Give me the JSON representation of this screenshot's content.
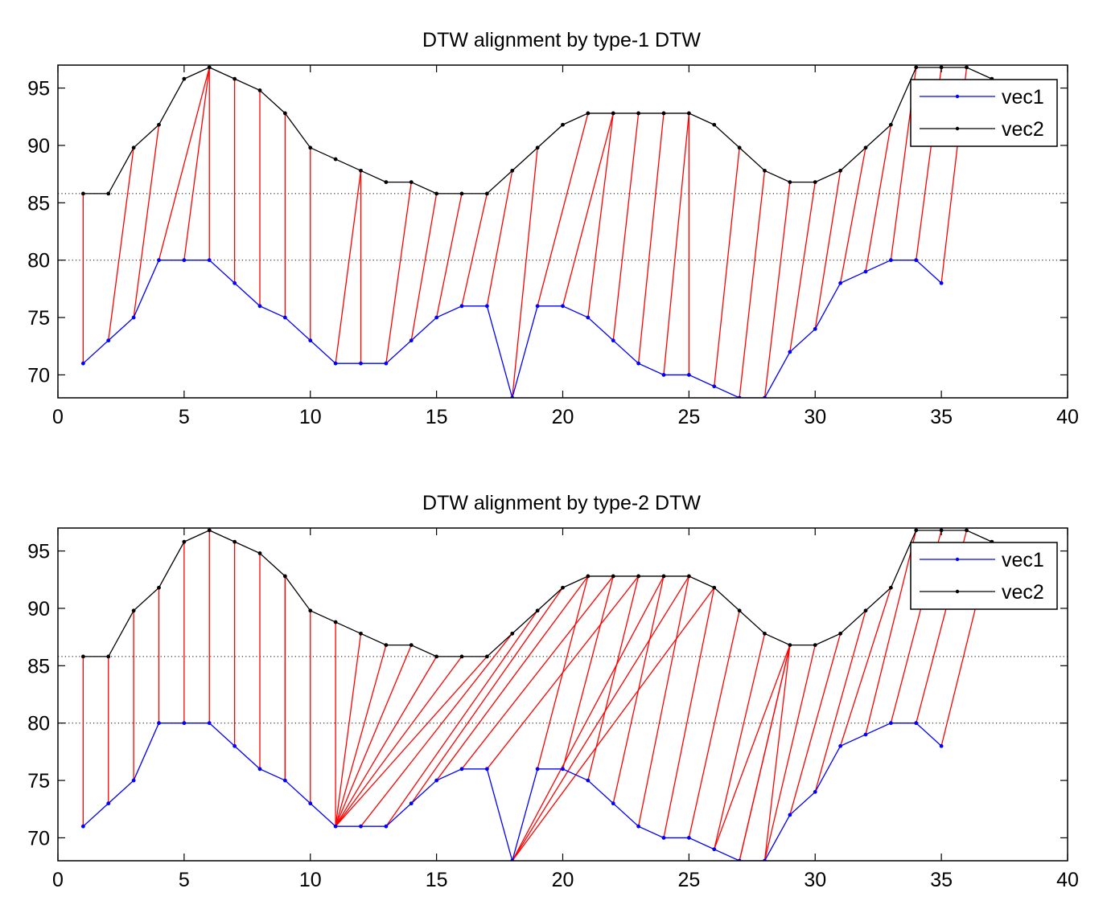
{
  "chart_data": [
    {
      "type": "line",
      "title": "DTW alignment by type-1 DTW",
      "xlabel": "",
      "ylabel": "",
      "xlim": [
        0,
        40
      ],
      "ylim": [
        68,
        97
      ],
      "xticks": [
        0,
        5,
        10,
        15,
        20,
        25,
        30,
        35,
        40
      ],
      "yticks": [
        70,
        75,
        80,
        85,
        90,
        95
      ],
      "reference_lines": [
        80,
        85.8
      ],
      "legend": {
        "position": "top-right",
        "entries": [
          "vec1",
          "vec2"
        ]
      },
      "series": [
        {
          "name": "vec1",
          "color": "#0000ff",
          "x": [
            1,
            2,
            3,
            4,
            5,
            6,
            7,
            8,
            9,
            10,
            11,
            12,
            13,
            14,
            15,
            16,
            17,
            18,
            19,
            20,
            21,
            22,
            23,
            24,
            25,
            26,
            27,
            28,
            29,
            30,
            31,
            32,
            33,
            34,
            35
          ],
          "values": [
            71,
            73,
            75,
            80,
            80,
            80,
            78,
            76,
            75,
            73,
            71,
            71,
            71,
            73,
            75,
            76,
            76,
            68,
            76,
            76,
            75,
            73,
            71,
            70,
            70,
            69,
            68,
            68,
            72,
            74,
            78,
            79,
            80,
            80,
            78
          ]
        },
        {
          "name": "vec2",
          "color": "#000000",
          "x": [
            1,
            2,
            3,
            4,
            5,
            6,
            7,
            8,
            9,
            10,
            11,
            12,
            13,
            14,
            15,
            16,
            17,
            18,
            19,
            20,
            21,
            22,
            23,
            24,
            25,
            26,
            27,
            28,
            29,
            30,
            31,
            32,
            33,
            34,
            35,
            36,
            37
          ],
          "values": [
            85.8,
            85.8,
            89.8,
            91.8,
            95.8,
            96.8,
            95.8,
            94.8,
            92.8,
            89.8,
            88.8,
            87.8,
            86.8,
            86.8,
            85.8,
            85.8,
            85.8,
            87.8,
            89.8,
            91.8,
            92.8,
            92.8,
            92.8,
            92.8,
            92.8,
            91.8,
            89.8,
            87.8,
            86.8,
            86.8,
            87.8,
            89.8,
            91.8,
            96.8,
            96.8,
            96.8,
            95.8
          ]
        }
      ],
      "alignment_color": "#ff0000",
      "alignment_pairs": [
        [
          1,
          1
        ],
        [
          2,
          3
        ],
        [
          3,
          4
        ],
        [
          4,
          6
        ],
        [
          5,
          6
        ],
        [
          6,
          6
        ],
        [
          7,
          7
        ],
        [
          8,
          8
        ],
        [
          9,
          9
        ],
        [
          10,
          10
        ],
        [
          11,
          12
        ],
        [
          12,
          12
        ],
        [
          13,
          14
        ],
        [
          14,
          15
        ],
        [
          15,
          16
        ],
        [
          16,
          17
        ],
        [
          17,
          18
        ],
        [
          18,
          19
        ],
        [
          19,
          21
        ],
        [
          20,
          22
        ],
        [
          21,
          22
        ],
        [
          22,
          23
        ],
        [
          23,
          24
        ],
        [
          24,
          25
        ],
        [
          25,
          25
        ],
        [
          26,
          27
        ],
        [
          27,
          28
        ],
        [
          28,
          29
        ],
        [
          29,
          30
        ],
        [
          30,
          31
        ],
        [
          31,
          32
        ],
        [
          32,
          33
        ],
        [
          33,
          34
        ],
        [
          34,
          35
        ],
        [
          35,
          36
        ]
      ]
    },
    {
      "type": "line",
      "title": "DTW alignment by type-2 DTW",
      "xlabel": "",
      "ylabel": "",
      "xlim": [
        0,
        40
      ],
      "ylim": [
        68,
        97
      ],
      "xticks": [
        0,
        5,
        10,
        15,
        20,
        25,
        30,
        35,
        40
      ],
      "yticks": [
        70,
        75,
        80,
        85,
        90,
        95
      ],
      "reference_lines": [
        80,
        85.8
      ],
      "legend": {
        "position": "top-right",
        "entries": [
          "vec1",
          "vec2"
        ]
      },
      "series": [
        {
          "name": "vec1",
          "color": "#0000ff",
          "x": [
            1,
            2,
            3,
            4,
            5,
            6,
            7,
            8,
            9,
            10,
            11,
            12,
            13,
            14,
            15,
            16,
            17,
            18,
            19,
            20,
            21,
            22,
            23,
            24,
            25,
            26,
            27,
            28,
            29,
            30,
            31,
            32,
            33,
            34,
            35
          ],
          "values": [
            71,
            73,
            75,
            80,
            80,
            80,
            78,
            76,
            75,
            73,
            71,
            71,
            71,
            73,
            75,
            76,
            76,
            68,
            76,
            76,
            75,
            73,
            71,
            70,
            70,
            69,
            68,
            68,
            72,
            74,
            78,
            79,
            80,
            80,
            78
          ]
        },
        {
          "name": "vec2",
          "color": "#000000",
          "x": [
            1,
            2,
            3,
            4,
            5,
            6,
            7,
            8,
            9,
            10,
            11,
            12,
            13,
            14,
            15,
            16,
            17,
            18,
            19,
            20,
            21,
            22,
            23,
            24,
            25,
            26,
            27,
            28,
            29,
            30,
            31,
            32,
            33,
            34,
            35,
            36,
            37
          ],
          "values": [
            85.8,
            85.8,
            89.8,
            91.8,
            95.8,
            96.8,
            95.8,
            94.8,
            92.8,
            89.8,
            88.8,
            87.8,
            86.8,
            86.8,
            85.8,
            85.8,
            85.8,
            87.8,
            89.8,
            91.8,
            92.8,
            92.8,
            92.8,
            92.8,
            92.8,
            91.8,
            89.8,
            87.8,
            86.8,
            86.8,
            87.8,
            89.8,
            91.8,
            96.8,
            96.8,
            96.8,
            95.8
          ]
        }
      ],
      "alignment_color": "#ff0000",
      "alignment_pairs": [
        [
          1,
          1
        ],
        [
          2,
          2
        ],
        [
          3,
          3
        ],
        [
          4,
          4
        ],
        [
          5,
          5
        ],
        [
          6,
          6
        ],
        [
          7,
          7
        ],
        [
          8,
          8
        ],
        [
          9,
          9
        ],
        [
          9,
          9
        ],
        [
          10,
          10
        ],
        [
          11,
          11
        ],
        [
          11,
          12
        ],
        [
          11,
          13
        ],
        [
          11,
          14
        ],
        [
          11,
          15
        ],
        [
          11,
          16
        ],
        [
          11,
          17
        ],
        [
          12,
          18
        ],
        [
          13,
          19
        ],
        [
          14,
          20
        ],
        [
          15,
          21
        ],
        [
          16,
          22
        ],
        [
          17,
          23
        ],
        [
          18,
          24
        ],
        [
          18,
          25
        ],
        [
          18,
          26
        ],
        [
          19,
          21
        ],
        [
          20,
          22
        ],
        [
          21,
          23
        ],
        [
          22,
          24
        ],
        [
          23,
          25
        ],
        [
          24,
          26
        ],
        [
          25,
          27
        ],
        [
          26,
          28
        ],
        [
          27,
          29
        ],
        [
          28,
          29
        ],
        [
          26,
          29
        ],
        [
          27,
          29
        ],
        [
          28,
          30
        ],
        [
          29,
          31
        ],
        [
          30,
          32
        ],
        [
          31,
          33
        ],
        [
          32,
          34
        ],
        [
          33,
          35
        ],
        [
          34,
          36
        ],
        [
          35,
          37
        ]
      ]
    }
  ]
}
